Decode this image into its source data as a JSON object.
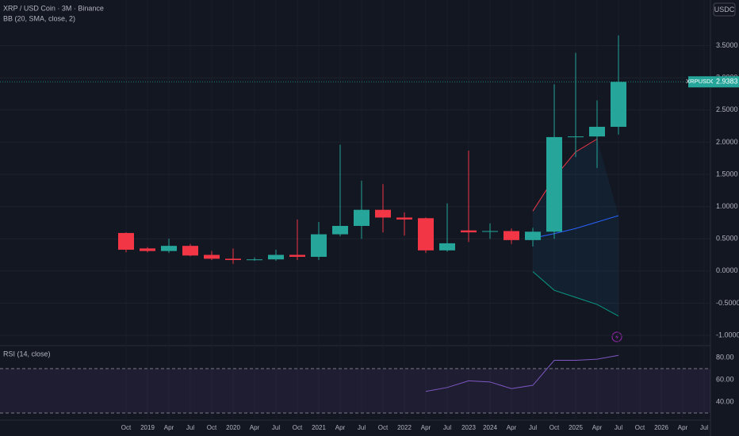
{
  "chart_data": [
    {
      "type": "candlestick",
      "title": "XRP / USD Coin · 3M · Binance",
      "subtitle": "BB (20, SMA, close, 2)",
      "currency": "USDC",
      "symbol": "XRPUSDC",
      "categories": [
        "Oct",
        "2019",
        "Apr",
        "Jul",
        "Oct",
        "2020",
        "Apr",
        "Jul",
        "Oct",
        "2021",
        "Apr",
        "Jul",
        "Oct",
        "2022",
        "Apr",
        "Jul",
        "2023",
        "2024",
        "Apr",
        "Jul",
        "Oct",
        "2025",
        "Apr",
        "Jul",
        "Oct",
        "2026",
        "Apr",
        "Jul"
      ],
      "open": [
        0.59,
        0.35,
        0.31,
        0.39,
        0.25,
        0.19,
        0.17,
        0.18,
        0.25,
        0.22,
        0.57,
        0.7,
        0.95,
        0.83,
        0.82,
        0.32,
        0.63,
        0.61,
        0.62,
        0.48,
        0.61,
        2.08,
        2.09,
        2.24,
        null,
        null,
        null,
        null
      ],
      "high": [
        0.6,
        0.37,
        0.5,
        0.42,
        0.31,
        0.35,
        0.21,
        0.33,
        0.8,
        0.76,
        1.96,
        1.4,
        1.35,
        0.91,
        0.83,
        1.05,
        1.87,
        0.74,
        0.66,
        0.67,
        2.9,
        3.39,
        2.65,
        3.66,
        null,
        null,
        null,
        null
      ],
      "low": [
        0.29,
        0.29,
        0.28,
        0.23,
        0.17,
        0.11,
        0.16,
        0.16,
        0.17,
        0.17,
        0.54,
        0.5,
        0.6,
        0.55,
        0.28,
        0.3,
        0.45,
        0.5,
        0.42,
        0.38,
        0.5,
        1.77,
        1.6,
        2.12,
        null,
        null,
        null,
        null
      ],
      "close": [
        0.33,
        0.31,
        0.39,
        0.24,
        0.19,
        0.17,
        0.18,
        0.25,
        0.22,
        0.57,
        0.7,
        0.95,
        0.83,
        0.8,
        0.32,
        0.43,
        0.6,
        0.62,
        0.48,
        0.61,
        2.08,
        2.09,
        2.24,
        2.9383,
        null,
        null,
        null,
        null
      ],
      "up_color": "#26a69a",
      "down_color": "#f23645",
      "bb_upper": [
        null,
        null,
        null,
        null,
        null,
        null,
        null,
        null,
        null,
        null,
        null,
        null,
        null,
        null,
        null,
        null,
        null,
        null,
        null,
        0.93,
        1.45,
        1.85,
        2.05,
        null,
        null,
        null,
        null,
        null
      ],
      "bb_basis": [
        null,
        null,
        null,
        null,
        null,
        null,
        null,
        null,
        null,
        null,
        null,
        null,
        null,
        null,
        null,
        null,
        null,
        null,
        null,
        0.51,
        0.58,
        0.66,
        0.76,
        0.86,
        null,
        null,
        null,
        null
      ],
      "bb_lower": [
        null,
        null,
        null,
        null,
        null,
        null,
        null,
        null,
        null,
        null,
        null,
        null,
        null,
        null,
        null,
        null,
        null,
        null,
        null,
        -0.01,
        -0.3,
        -0.41,
        -0.52,
        -0.7,
        null,
        null,
        null,
        null
      ],
      "bb_colors": [
        "#f23645",
        "#2962ff",
        "#089981"
      ],
      "ylim": [
        -1.16,
        4.21
      ],
      "yticks": [
        {
          "value": 3.5,
          "label": "3.5000"
        },
        {
          "value": 3,
          "label": "3.0000"
        },
        {
          "value": 2.5,
          "label": "2.5000"
        },
        {
          "value": 2,
          "label": "2.0000"
        },
        {
          "value": 1.5,
          "label": "1.5000"
        },
        {
          "value": 1,
          "label": "1.0000"
        },
        {
          "value": 0.5,
          "label": "0.5000"
        },
        {
          "value": 0,
          "label": "0.0000"
        },
        {
          "value": -0.5,
          "label": "-0.5000"
        },
        {
          "value": -1,
          "label": "-1.0000"
        }
      ],
      "grid": true
    },
    {
      "type": "line",
      "title": "RSI (14, close)",
      "values": [
        null,
        null,
        null,
        null,
        null,
        null,
        null,
        null,
        null,
        null,
        null,
        null,
        null,
        null,
        49.5,
        53,
        59,
        58,
        52,
        55,
        77.5,
        77.5,
        78.5,
        82,
        null,
        null,
        null,
        null
      ],
      "color": "#7e57c2",
      "band": [
        30,
        70
      ],
      "ylim": [
        23.6,
        90
      ],
      "yticks": [
        {
          "value": 80,
          "label": "80.00"
        },
        {
          "value": 60,
          "label": "60.00"
        },
        {
          "value": 40,
          "label": "40.00"
        }
      ]
    }
  ]
}
